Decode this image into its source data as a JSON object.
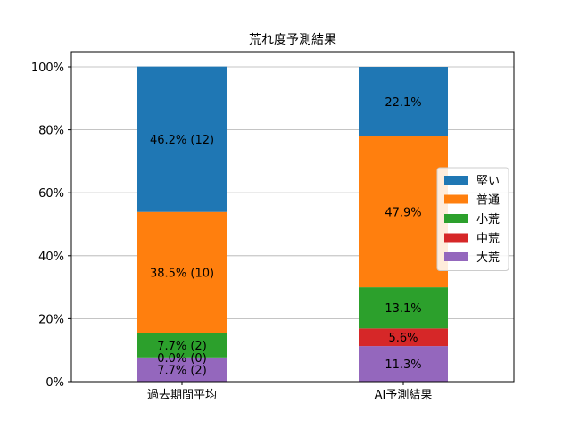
{
  "chart_data": {
    "type": "bar",
    "stacked": true,
    "title": "荒れ度予測結果",
    "categories": [
      "過去期間平均",
      "AI予測結果"
    ],
    "yticks": [
      "0%",
      "20%",
      "40%",
      "60%",
      "80%",
      "100%"
    ],
    "ylim": [
      0,
      100
    ],
    "grid": "horizontal",
    "legend_position": "center-right",
    "series": [
      {
        "name": "大荒",
        "color": "#9467bd",
        "values": [
          7.7,
          11.3
        ],
        "labels": [
          "7.7% (2)",
          "11.3%"
        ]
      },
      {
        "name": "中荒",
        "color": "#d62728",
        "values": [
          0.0,
          5.6
        ],
        "labels": [
          "0.0% (0)",
          "5.6%"
        ]
      },
      {
        "name": "小荒",
        "color": "#2ca02c",
        "values": [
          7.7,
          13.1
        ],
        "labels": [
          "7.7% (2)",
          "13.1%"
        ]
      },
      {
        "name": "普通",
        "color": "#ff7f0e",
        "values": [
          38.5,
          47.9
        ],
        "labels": [
          "38.5% (10)",
          "47.9%"
        ]
      },
      {
        "name": "堅い",
        "color": "#1f77b4",
        "values": [
          46.2,
          22.1
        ],
        "labels": [
          "46.2% (12)",
          "22.1%"
        ]
      }
    ],
    "legend_order": [
      "堅い",
      "普通",
      "小荒",
      "中荒",
      "大荒"
    ]
  }
}
